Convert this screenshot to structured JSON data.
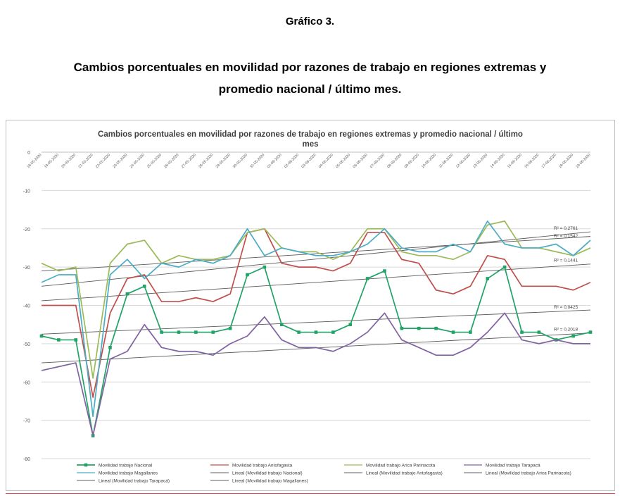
{
  "document": {
    "label": "Gráfico 3.",
    "title_line1": "Cambios porcentuales en movilidad por razones de trabajo en regiones extremas y",
    "title_line2": "promedio nacional / último mes."
  },
  "chart_data": {
    "type": "line",
    "title_line1": "Cambios porcentuales en movilidad por razones de trabajo en regiones extremas y promedio nacional / último",
    "title_line2": "mes",
    "ylim": [
      -80,
      0
    ],
    "yticks": [
      0,
      -10,
      -20,
      -30,
      -40,
      -50,
      -60,
      -70,
      -80
    ],
    "grid": true,
    "legend_position": "bottom",
    "x": [
      "18-05-2020",
      "19-05-2020",
      "20-05-2020",
      "21-05-2020",
      "22-05-2020",
      "23-05-2020",
      "24-05-2020",
      "25-05-2020",
      "26-05-2020",
      "27-05-2020",
      "28-05-2020",
      "29-05-2020",
      "30-05-2020",
      "31-05-2020",
      "01-06-2020",
      "02-06-2020",
      "03-06-2020",
      "04-06-2020",
      "05-06-2020",
      "06-06-2020",
      "07-06-2020",
      "08-06-2020",
      "09-06-2020",
      "10-06-2020",
      "11-06-2020",
      "12-06-2020",
      "13-06-2020",
      "14-06-2020",
      "15-06-2020",
      "16-06-2020",
      "17-06-2020",
      "18-06-2020",
      "19-06-2020"
    ],
    "series": [
      {
        "name": "Movilidad trabajo Nacional",
        "color": "#21a366",
        "markers": true,
        "values": [
          -48,
          -49,
          -49,
          -74,
          -51,
          -37,
          -35,
          -47,
          -47,
          -47,
          -47,
          -46,
          -32,
          -30,
          -45,
          -47,
          -47,
          -47,
          -45,
          -33,
          -31,
          -46,
          -46,
          -46,
          -47,
          -47,
          -33,
          -30,
          -47,
          -47,
          -49,
          -48,
          -47
        ]
      },
      {
        "name": "Movilidad trabajo Antofagasta",
        "color": "#c0504d",
        "markers": false,
        "values": [
          -40,
          -40,
          -40,
          -64,
          -42,
          -33,
          -32,
          -39,
          -39,
          -38,
          -39,
          -37,
          -21,
          -20,
          -29,
          -30,
          -30,
          -31,
          -29,
          -21,
          -21,
          -28,
          -29,
          -36,
          -37,
          -35,
          -27,
          -28,
          -35,
          -35,
          -35,
          -36,
          -34
        ]
      },
      {
        "name": "Movilidad trabajo Arica Parinacota",
        "color": "#9bbb59",
        "markers": false,
        "values": [
          -29,
          -31,
          -30,
          -59,
          -29,
          -24,
          -23,
          -29,
          -27,
          -28,
          -28,
          -27,
          -21,
          -20,
          -25,
          -26,
          -26,
          -28,
          -26,
          -20,
          -20,
          -26,
          -27,
          -27,
          -28,
          -26,
          -19,
          -18,
          -25,
          -25,
          -26,
          -27,
          -25
        ]
      },
      {
        "name": "Movilidad trabajo Tarapacá",
        "color": "#8064a2",
        "markers": false,
        "values": [
          -57,
          -56,
          -55,
          -74,
          -54,
          -52,
          -45,
          -51,
          -52,
          -52,
          -53,
          -50,
          -48,
          -43,
          -49,
          -51,
          -51,
          -52,
          -50,
          -47,
          -42,
          -49,
          -51,
          -53,
          -53,
          -51,
          -47,
          -42,
          -49,
          -50,
          -49,
          -50,
          -50
        ]
      },
      {
        "name": "Movilidad trabajo Magallanes",
        "color": "#4bacc6",
        "markers": false,
        "values": [
          -34,
          -32,
          -32,
          -69,
          -32,
          -28,
          -33,
          -29,
          -30,
          -28,
          -29,
          -27,
          -20,
          -27,
          -25,
          -26,
          -27,
          -27,
          -26,
          -24,
          -20,
          -25,
          -26,
          -26,
          -24,
          -26,
          -18,
          -24,
          -25,
          -25,
          -24,
          -27,
          -23
        ]
      }
    ],
    "trendlines": [
      {
        "name": "Lineal (Movilidad trabajo Nacional)",
        "color": "#595959",
        "start": -47.5,
        "end": -41.2
      },
      {
        "name": "Lineal (Movilidad trabajo Antofagasta)",
        "color": "#595959",
        "start": -38.8,
        "end": -29.2
      },
      {
        "name": "Lineal (Movilidad trabajo Arica Parinacota)",
        "color": "#595959",
        "start": -35.0,
        "end": -20.8
      },
      {
        "name": "Lineal (Movilidad trabajo Tarapacá)",
        "color": "#595959",
        "start": -55.0,
        "end": -47.2
      },
      {
        "name": "Lineal (Movilidad trabajo Magallanes)",
        "color": "#595959",
        "start": -31.0,
        "end": -22.0
      }
    ],
    "r2_labels": [
      {
        "text": "R² = 0,2761",
        "y": -20.6
      },
      {
        "text": "R² = 0,1542",
        "y": -22.6
      },
      {
        "text": "R² = 0,1441",
        "y": -29.0
      },
      {
        "text": "R² = 0,0425",
        "y": -41.2
      },
      {
        "text": "R² = 0,2018",
        "y": -47.0
      }
    ],
    "legend": [
      {
        "text": "Movilidad trabajo Nacional",
        "color": "#21a366",
        "marker": true
      },
      {
        "text": "Movilidad trabajo Antofagasta",
        "color": "#c0504d",
        "marker": false
      },
      {
        "text": "Movilidad trabajo Arica Parinacota",
        "color": "#9bbb59",
        "marker": false
      },
      {
        "text": "Movilidad trabajo Tarapacá",
        "color": "#8064a2",
        "marker": false
      },
      {
        "text": "Movilidad trabajo Magallanes",
        "color": "#4bacc6",
        "marker": false
      },
      {
        "text": "Lineal (Movilidad trabajo Nacional)",
        "color": "#7f7f7f",
        "marker": false
      },
      {
        "text": "Lineal (Movilidad trabajo Antofagasta)",
        "color": "#7f7f7f",
        "marker": false
      },
      {
        "text": "Lineal (Movilidad trabajo Arica Parinacota)",
        "color": "#7f7f7f",
        "marker": false
      },
      {
        "text": "Lineal (Movilidad trabajo Tarapacá)",
        "color": "#7f7f7f",
        "marker": false
      },
      {
        "text": "Lineal (Movilidad trabajo Magallanes)",
        "color": "#7f7f7f",
        "marker": false
      }
    ]
  }
}
